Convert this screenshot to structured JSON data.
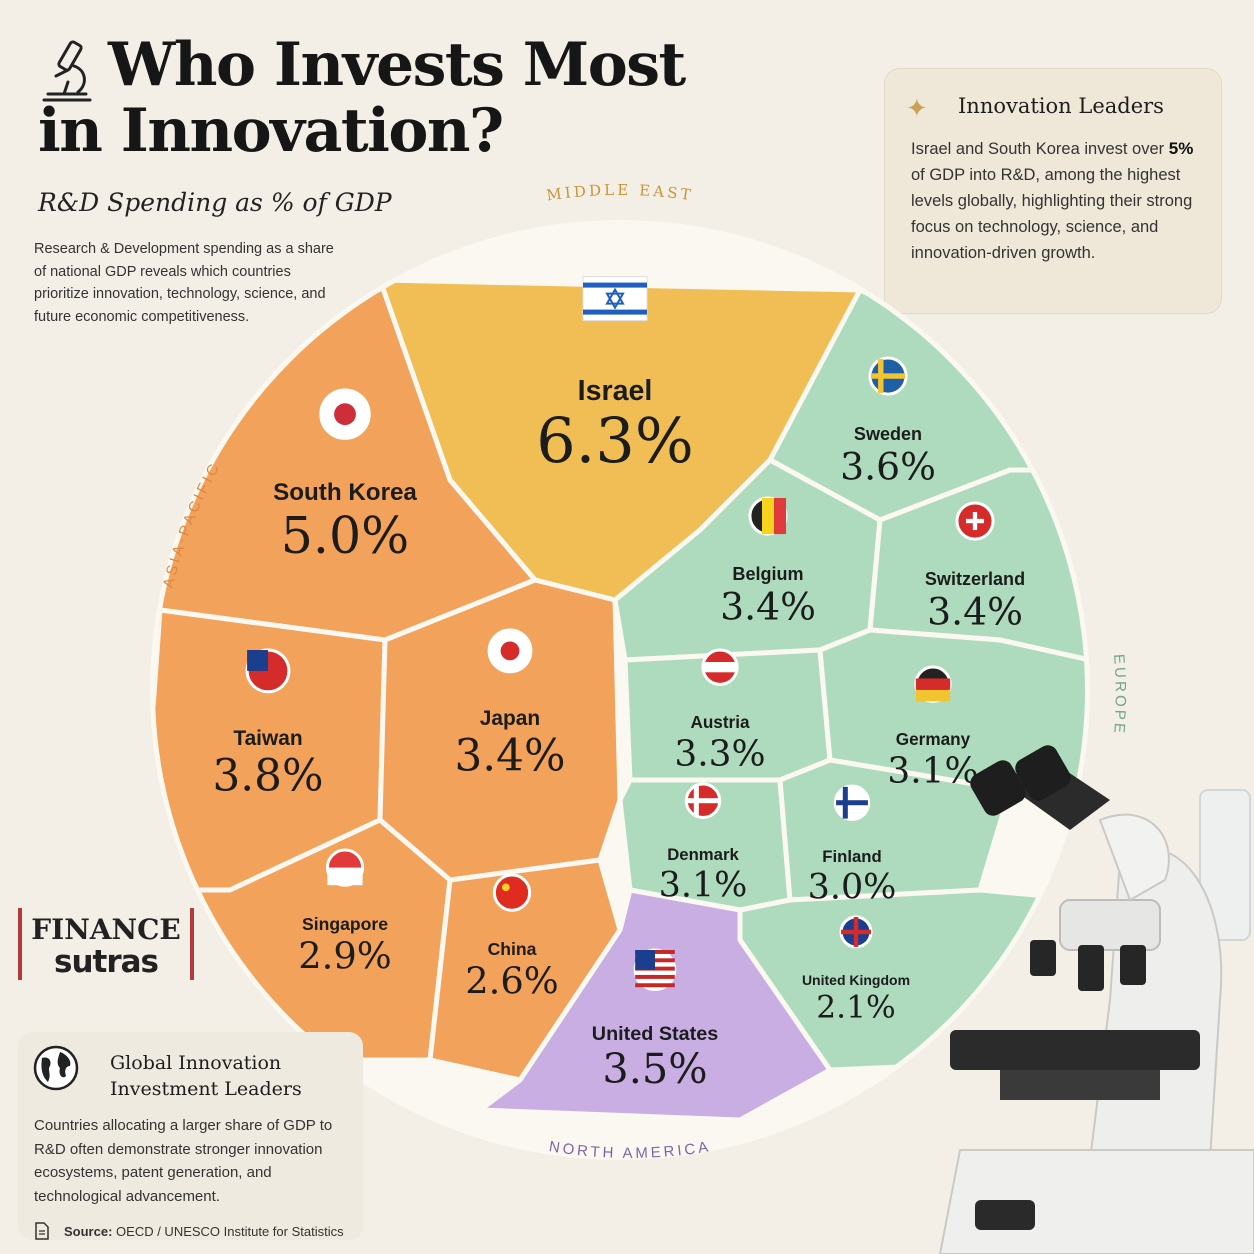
{
  "header": {
    "title_line1": "Who Invests Most",
    "title_line2": "in Innovation?",
    "subtitle": "R&D Spending as % of GDP",
    "intro": "Research & Development spending as a share of national GDP reveals which countries prioritize innovation, technology, science, and future economic competitiveness."
  },
  "leaders": {
    "title": "Innovation Leaders",
    "text_before": "Israel and South Korea invest over",
    "highlight": "5%",
    "text_after": "of GDP into R&D, among the highest levels globally, highlighting their strong focus on technology, science, and innovation-driven growth."
  },
  "logo": {
    "line1": "FINANCE",
    "line2": "sutras"
  },
  "global": {
    "title": "Global Innovation Investment Leaders",
    "text": "Countries allocating a larger share of GDP to R&D often demonstrate stronger innovation ecosystems, patent generation, and technological advancement."
  },
  "source": {
    "label": "Source:",
    "text": "OECD / UNESCO Institute for Statistics"
  },
  "colors": {
    "middle_east": "#f1bd55",
    "asia_pacific": "#f2a25a",
    "europe": "#aedbbd",
    "north_america": "#c8aee3",
    "background": "#f3efe6"
  },
  "chart_data": {
    "type": "voronoi-treemap",
    "unit": "%",
    "regions": [
      "MIDDLE EAST",
      "ASIA-PACIFIC",
      "EUROPE",
      "NORTH AMERICA"
    ],
    "countries": [
      {
        "name": "Israel",
        "value": 6.3,
        "region": "MIDDLE EAST",
        "label": "6.3%"
      },
      {
        "name": "South Korea",
        "value": 5.0,
        "region": "ASIA-PACIFIC",
        "label": "5.0%"
      },
      {
        "name": "Taiwan",
        "value": 3.8,
        "region": "ASIA-PACIFIC",
        "label": "3.8%"
      },
      {
        "name": "Japan",
        "value": 3.4,
        "region": "ASIA-PACIFIC",
        "label": "3.4%"
      },
      {
        "name": "Singapore",
        "value": 2.9,
        "region": "ASIA-PACIFIC",
        "label": "2.9%"
      },
      {
        "name": "China",
        "value": 2.6,
        "region": "ASIA-PACIFIC",
        "label": "2.6%"
      },
      {
        "name": "Sweden",
        "value": 3.6,
        "region": "EUROPE",
        "label": "3.6%"
      },
      {
        "name": "Belgium",
        "value": 3.4,
        "region": "EUROPE",
        "label": "3.4%"
      },
      {
        "name": "Switzerland",
        "value": 3.4,
        "region": "EUROPE",
        "label": "3.4%"
      },
      {
        "name": "Austria",
        "value": 3.3,
        "region": "EUROPE",
        "label": "3.3%"
      },
      {
        "name": "Germany",
        "value": 3.1,
        "region": "EUROPE",
        "label": "3.1%"
      },
      {
        "name": "Denmark",
        "value": 3.1,
        "region": "EUROPE",
        "label": "3.1%"
      },
      {
        "name": "Finland",
        "value": 3.0,
        "region": "EUROPE",
        "label": "3.0%"
      },
      {
        "name": "United Kingdom",
        "value": 2.1,
        "region": "EUROPE",
        "label": "2.1%"
      },
      {
        "name": "United States",
        "value": 3.5,
        "region": "NORTH AMERICA",
        "label": "3.5%"
      }
    ]
  }
}
